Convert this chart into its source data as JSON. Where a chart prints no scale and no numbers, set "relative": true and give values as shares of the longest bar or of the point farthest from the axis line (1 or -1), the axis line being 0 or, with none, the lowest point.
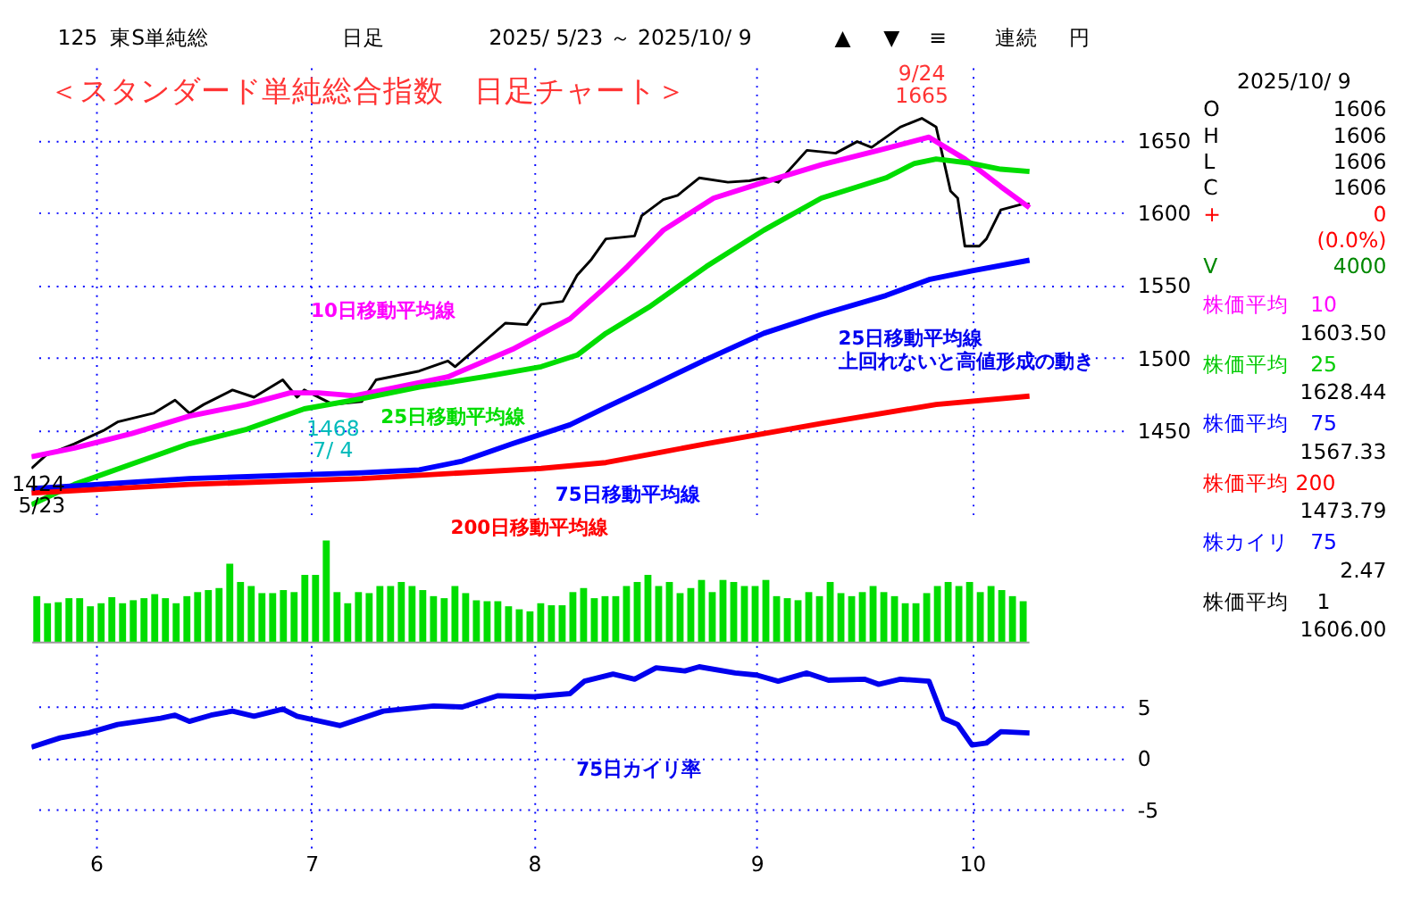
{
  "chart_data": [
    {
      "type": "line",
      "title": "＜スタンダード単純総合指数　日足チャート＞",
      "xlim": [
        "2025-05-23",
        "2025-10-22"
      ],
      "xticks": [
        {
          "value": "2025-06-01",
          "label": null
        },
        {
          "value": "2025-07-01",
          "label": null
        },
        {
          "value": "2025-08-01",
          "label": null
        },
        {
          "value": "2025-09-01",
          "label": null
        },
        {
          "value": "2025-10-01",
          "label": null
        }
      ],
      "ylim": [
        1390,
        1700
      ],
      "yticks": [
        1450,
        1500,
        1550,
        1600,
        1650
      ],
      "grid": true,
      "tick_labels": "y",
      "series": [
        {
          "color": "#000000",
          "x": [
            "2025-05-23",
            "2025-05-25",
            "2025-05-29",
            "2025-06-02",
            "2025-06-04",
            "2025-06-09",
            "2025-06-12",
            "2025-06-14",
            "2025-06-16",
            "2025-06-20",
            "2025-06-23",
            "2025-06-27",
            "2025-06-29",
            "2025-06-30",
            "2025-07-04",
            "2025-07-08",
            "2025-07-10",
            "2025-07-16",
            "2025-07-20",
            "2025-07-21",
            "2025-07-25",
            "2025-07-28",
            "2025-07-31",
            "2025-08-02",
            "2025-08-05",
            "2025-08-07",
            "2025-08-09",
            "2025-08-11",
            "2025-08-15",
            "2025-08-16",
            "2025-08-19",
            "2025-08-21",
            "2025-08-24",
            "2025-08-28",
            "2025-08-31",
            "2025-09-02",
            "2025-09-04",
            "2025-09-08",
            "2025-09-12",
            "2025-09-15",
            "2025-09-17",
            "2025-09-21",
            "2025-09-24",
            "2025-09-26",
            "2025-09-28",
            "2025-09-29",
            "2025-09-30",
            "2025-10-02",
            "2025-10-03",
            "2025-10-05",
            "2025-10-08",
            "2025-10-09"
          ],
          "values": [
            1424,
            1433,
            1441,
            1450,
            1456,
            1462,
            1471,
            1462,
            1468,
            1478,
            1473,
            1485,
            1473,
            1478,
            1468,
            1470,
            1485,
            1491,
            1498,
            1494,
            1511,
            1524,
            1523,
            1537,
            1539,
            1557,
            1568,
            1582,
            1584,
            1598,
            1609,
            1612,
            1624,
            1621,
            1622,
            1624,
            1621,
            1643,
            1641,
            1649,
            1645,
            1659,
            1665,
            1659,
            1615,
            1610,
            1577,
            1577,
            1582,
            1602,
            1606,
            1606
          ]
        },
        {
          "name": "10日移動平均線",
          "color": "#ff00ff",
          "x": [
            "2025-05-23",
            "2025-05-29",
            "2025-06-06",
            "2025-06-14",
            "2025-06-22",
            "2025-06-28",
            "2025-07-02",
            "2025-07-07",
            "2025-07-13",
            "2025-07-20",
            "2025-07-29",
            "2025-08-06",
            "2025-08-11",
            "2025-08-14",
            "2025-08-19",
            "2025-08-26",
            "2025-09-02",
            "2025-09-10",
            "2025-09-18",
            "2025-09-25",
            "2025-09-30",
            "2025-10-05",
            "2025-10-09"
          ],
          "values": [
            1432,
            1438,
            1448,
            1460,
            1468,
            1476,
            1476,
            1474,
            1480,
            1487,
            1506,
            1527,
            1549,
            1563,
            1588,
            1610,
            1621,
            1633,
            1643,
            1652,
            1637,
            1618,
            1603.5
          ]
        },
        {
          "name": "25日移動平均線",
          "color": "#00dd00",
          "x": [
            "2025-05-23",
            "2025-05-29",
            "2025-06-06",
            "2025-06-14",
            "2025-06-22",
            "2025-06-30",
            "2025-07-08",
            "2025-07-16",
            "2025-07-25",
            "2025-08-02",
            "2025-08-07",
            "2025-08-11",
            "2025-08-17",
            "2025-08-25",
            "2025-09-02",
            "2025-09-10",
            "2025-09-19",
            "2025-09-23",
            "2025-09-26",
            "2025-10-01",
            "2025-10-05",
            "2025-10-09"
          ],
          "values": [
            1399,
            1413,
            1427,
            1441,
            1451,
            1465,
            1472,
            1480,
            1487,
            1494,
            1502,
            1517,
            1535,
            1563,
            1588,
            1610,
            1624,
            1634,
            1637,
            1634,
            1630,
            1628.44
          ]
        },
        {
          "name": "75日移動平均線",
          "color": "#0000ff",
          "x": [
            "2025-05-23",
            "2025-06-14",
            "2025-07-08",
            "2025-07-16",
            "2025-07-22",
            "2025-07-29",
            "2025-08-06",
            "2025-08-11",
            "2025-08-17",
            "2025-08-25",
            "2025-09-02",
            "2025-09-10",
            "2025-09-19",
            "2025-09-25",
            "2025-10-01",
            "2025-10-09"
          ],
          "values": [
            1410,
            1417,
            1421,
            1423,
            1429,
            1441,
            1454,
            1466,
            1480,
            1499,
            1517,
            1530,
            1543,
            1554,
            1560,
            1567.33
          ]
        },
        {
          "name": "200日移動平均線",
          "color": "#ff0000",
          "x": [
            "2025-05-23",
            "2025-06-14",
            "2025-07-08",
            "2025-08-02",
            "2025-08-11",
            "2025-08-25",
            "2025-09-10",
            "2025-09-26",
            "2025-10-09"
          ],
          "values": [
            1407,
            1413,
            1417,
            1424,
            1428,
            1441,
            1455,
            1468,
            1473.79
          ]
        }
      ],
      "annotations": [
        {
          "text": "9/24",
          "x": "2025-09-24",
          "y": 1665
        },
        {
          "text": "1665",
          "x": "2025-09-24",
          "y": 1665
        },
        {
          "text": "1468",
          "x": "2025-07-04",
          "y": 1468
        },
        {
          "text": "7/ 4",
          "x": "2025-07-04",
          "y": 1468
        },
        {
          "text": "1424",
          "x": "2025-05-23",
          "y": 1424
        },
        {
          "text": "5/23",
          "x": "2025-05-23",
          "y": 1424
        },
        "25日移動平均線",
        "上回れないと高値形成の動き"
      ]
    },
    {
      "type": "bar",
      "relative": true,
      "color": "#00dd00",
      "tick_labels": false,
      "categories": [
        null,
        null,
        null,
        null,
        null,
        null,
        null,
        null,
        null,
        null,
        null,
        null,
        null,
        null,
        null,
        null,
        null,
        null,
        null,
        null,
        null,
        null,
        null,
        null,
        null,
        null,
        null,
        null,
        null,
        null,
        null,
        null,
        null,
        null,
        null,
        null,
        null,
        null,
        null,
        null,
        null,
        null,
        null,
        null,
        null,
        null,
        null,
        null,
        null,
        null,
        null,
        null,
        null,
        null,
        null,
        null,
        null,
        null,
        null,
        null,
        null,
        null,
        null,
        null,
        null,
        null,
        null,
        null,
        null,
        null,
        null,
        null,
        null,
        null,
        null,
        null,
        null,
        null,
        null,
        null,
        null,
        null,
        null,
        null,
        null,
        null,
        null,
        null,
        null,
        null,
        null,
        null,
        null
      ],
      "values": [
        0.45,
        0.38,
        0.39,
        0.43,
        0.43,
        0.35,
        0.38,
        0.44,
        0.38,
        0.41,
        0.43,
        0.47,
        0.43,
        0.38,
        0.45,
        0.49,
        0.51,
        0.53,
        0.77,
        0.59,
        0.55,
        0.48,
        0.48,
        0.51,
        0.49,
        0.66,
        0.66,
        1,
        0.49,
        0.38,
        0.49,
        0.48,
        0.55,
        0.55,
        0.59,
        0.55,
        0.51,
        0.45,
        0.43,
        0.55,
        0.48,
        0.41,
        0.4,
        0.4,
        0.35,
        0.32,
        0.3,
        0.38,
        0.36,
        0.36,
        0.49,
        0.53,
        0.43,
        0.45,
        0.45,
        0.55,
        0.59,
        0.66,
        0.55,
        0.59,
        0.48,
        0.53,
        0.61,
        0.49,
        0.61,
        0.59,
        0.55,
        0.55,
        0.61,
        0.45,
        0.43,
        0.41,
        0.49,
        0.45,
        0.59,
        0.48,
        0.45,
        0.49,
        0.55,
        0.49,
        0.45,
        0.38,
        0.38,
        0.48,
        0.55,
        0.59,
        0.55,
        0.59,
        0.49,
        0.55,
        0.51,
        0.45,
        0.4
      ]
    },
    {
      "type": "line",
      "xlim": [
        "2025-05-23",
        "2025-10-22"
      ],
      "xticks": [
        {
          "value": "2025-06-01",
          "label": "6"
        },
        {
          "value": "2025-07-01",
          "label": "7"
        },
        {
          "value": "2025-08-01",
          "label": "8"
        },
        {
          "value": "2025-09-01",
          "label": "9"
        },
        {
          "value": "2025-10-01",
          "label": "10"
        }
      ],
      "ylim": [
        -9,
        11
      ],
      "yticks": [
        -5,
        0,
        5
      ],
      "grid": true,
      "series": [
        {
          "name": "75日カイリ率",
          "color": "#0000ee",
          "x": [
            "2025-05-23",
            "2025-05-27",
            "2025-05-31",
            "2025-06-04",
            "2025-06-10",
            "2025-06-12",
            "2025-06-14",
            "2025-06-17",
            "2025-06-20",
            "2025-06-23",
            "2025-06-27",
            "2025-06-29",
            "2025-07-05",
            "2025-07-11",
            "2025-07-18",
            "2025-07-22",
            "2025-07-27",
            "2025-08-01",
            "2025-08-06",
            "2025-08-08",
            "2025-08-12",
            "2025-08-15",
            "2025-08-18",
            "2025-08-22",
            "2025-08-24",
            "2025-08-29",
            "2025-09-01",
            "2025-09-04",
            "2025-09-08",
            "2025-09-11",
            "2025-09-16",
            "2025-09-18",
            "2025-09-21",
            "2025-09-25",
            "2025-09-27",
            "2025-09-29",
            "2025-10-01",
            "2025-10-03",
            "2025-10-05",
            "2025-10-09"
          ],
          "values": [
            1.1,
            2.0,
            2.5,
            3.3,
            3.9,
            4.2,
            3.6,
            4.2,
            4.6,
            4.1,
            4.8,
            4.1,
            3.2,
            4.6,
            5.1,
            5.0,
            6.1,
            6.0,
            6.3,
            7.5,
            8.2,
            7.7,
            8.8,
            8.5,
            8.9,
            8.3,
            8.1,
            7.5,
            8.3,
            7.6,
            7.7,
            7.2,
            7.7,
            7.5,
            3.9,
            3.3,
            1.3,
            1.5,
            2.6,
            2.47
          ]
        }
      ]
    },
    {
      "type": "other",
      "annotations": [
        "125",
        "東S単純総",
        "日足",
        "2025/ 5/23 ～ 2025/10/ 9",
        "▲",
        "▼",
        "≡",
        "連続",
        "円"
      ]
    },
    {
      "type": "other",
      "annotations": [
        "2025/10/ 9",
        "O",
        "1606",
        "H",
        "1606",
        "L",
        "1606",
        "C",
        "1606",
        "+",
        "0",
        "(0.0%)",
        "V",
        "4000",
        "株価平均　10",
        "1603.50",
        "株価平均　25",
        "1628.44",
        "株価平均　75",
        "1567.33",
        "株価平均 200",
        "1473.79",
        "株カイリ　75",
        "2.47",
        "株価平均　 1",
        "1606.00"
      ]
    }
  ]
}
